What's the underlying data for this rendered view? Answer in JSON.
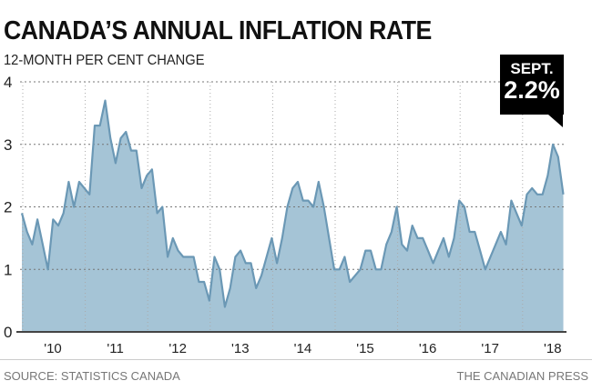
{
  "chart_data": {
    "type": "area",
    "title": "CANADA’S ANNUAL INFLATION RATE",
    "subtitle": "12-MONTH PER CENT CHANGE",
    "xlabel": "",
    "ylabel": "12-month per cent change",
    "ylim": [
      0,
      4
    ],
    "yticks": [
      "0",
      "1",
      "2",
      "3",
      "4"
    ],
    "xtick_labels": [
      "'10",
      "'11",
      "'12",
      "'13",
      "'14",
      "'15",
      "'16",
      "'17",
      "'18"
    ],
    "x_start": "Jan 2010",
    "x_end": "Sept 2018",
    "grid": true,
    "values": [
      1.9,
      1.6,
      1.4,
      1.8,
      1.4,
      1.0,
      1.8,
      1.7,
      1.9,
      2.4,
      2.0,
      2.4,
      2.3,
      2.2,
      3.3,
      3.3,
      3.7,
      3.1,
      2.7,
      3.1,
      3.2,
      2.9,
      2.9,
      2.3,
      2.5,
      2.6,
      1.9,
      2.0,
      1.2,
      1.5,
      1.3,
      1.2,
      1.2,
      1.2,
      0.8,
      0.8,
      0.5,
      1.2,
      1.0,
      0.4,
      0.7,
      1.2,
      1.3,
      1.1,
      1.1,
      0.7,
      0.9,
      1.2,
      1.5,
      1.1,
      1.5,
      2.0,
      2.3,
      2.4,
      2.1,
      2.1,
      2.0,
      2.4,
      2.0,
      1.5,
      1.0,
      1.0,
      1.2,
      0.8,
      0.9,
      1.0,
      1.3,
      1.3,
      1.0,
      1.0,
      1.4,
      1.6,
      2.0,
      1.4,
      1.3,
      1.7,
      1.5,
      1.5,
      1.3,
      1.1,
      1.3,
      1.5,
      1.2,
      1.5,
      2.1,
      2.0,
      1.6,
      1.6,
      1.3,
      1.0,
      1.2,
      1.4,
      1.6,
      1.4,
      2.1,
      1.9,
      1.7,
      2.2,
      2.3,
      2.2,
      2.2,
      2.5,
      3.0,
      2.8,
      2.2
    ],
    "annotation": {
      "month": "SEPT.",
      "value": "2.2%"
    },
    "colors": {
      "fill": "#a5c4d6",
      "line": "#6b98b5"
    }
  },
  "footer": {
    "source": "SOURCE: STATISTICS CANADA",
    "credit": "THE CANADIAN PRESS"
  }
}
